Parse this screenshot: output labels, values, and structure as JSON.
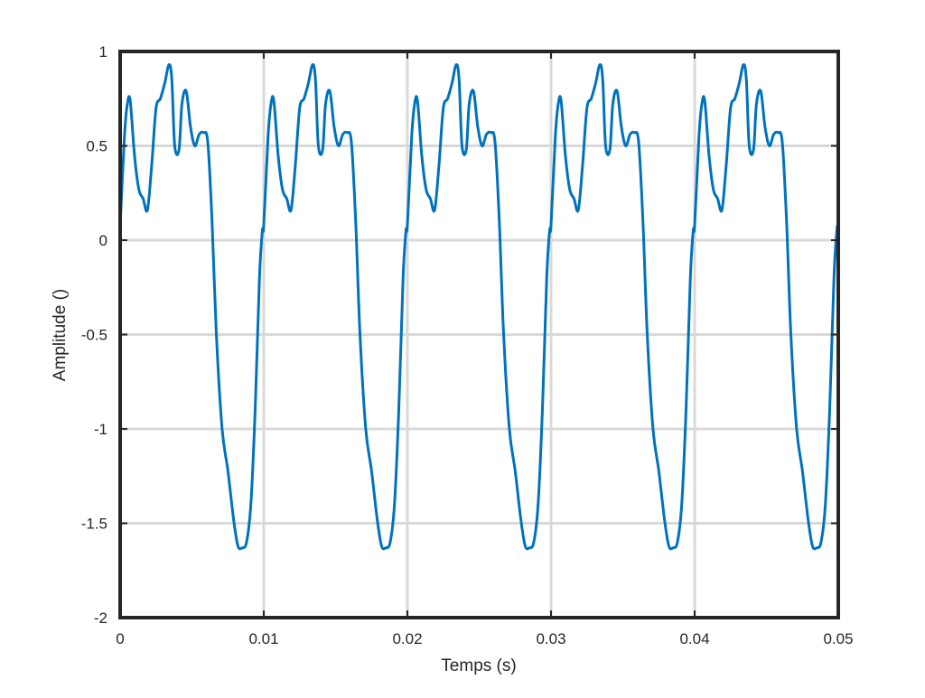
{
  "chart_data": {
    "type": "line",
    "title": "",
    "xlabel": "Temps (s)",
    "ylabel": "Amplitude ()",
    "xlim": [
      0,
      0.05
    ],
    "ylim": [
      -2,
      1
    ],
    "xticks": [
      0,
      0.01,
      0.02,
      0.03,
      0.04,
      0.05
    ],
    "xtick_labels": [
      "0",
      "0.01",
      "0.02",
      "0.03",
      "0.04",
      "0.05"
    ],
    "yticks": [
      -2,
      -1.5,
      -1,
      -0.5,
      0,
      0.5,
      1
    ],
    "ytick_labels": [
      "-2",
      "-1.5",
      "-1",
      "-0.5",
      "0",
      "0.5",
      "1"
    ],
    "grid": true,
    "series_color": "#0072BD",
    "grid_color": "#d9d9d9",
    "series": [
      {
        "period": 0.01,
        "x": [
          0,
          0.0003,
          0.0005,
          0.0007,
          0.001,
          0.0013,
          0.0016,
          0.0019,
          0.0022,
          0.0025,
          0.0028,
          0.0031,
          0.0034,
          0.0036,
          0.0038,
          0.0041,
          0.0043,
          0.0046,
          0.0049,
          0.0052,
          0.0055,
          0.0058,
          0.0061,
          0.0064,
          0.0067,
          0.0071,
          0.0075,
          0.0079,
          0.0082,
          0.0085,
          0.0088,
          0.0091,
          0.0094,
          0.0097,
          0.0099,
          0.01
        ],
        "y": [
          0.08,
          0.55,
          0.72,
          0.74,
          0.45,
          0.27,
          0.22,
          0.16,
          0.4,
          0.7,
          0.75,
          0.83,
          0.93,
          0.85,
          0.5,
          0.48,
          0.72,
          0.79,
          0.6,
          0.5,
          0.56,
          0.57,
          0.52,
          0.1,
          -0.5,
          -1.0,
          -1.22,
          -1.48,
          -1.62,
          -1.63,
          -1.6,
          -1.4,
          -0.9,
          -0.2,
          0.05,
          0.08
        ]
      }
    ]
  }
}
